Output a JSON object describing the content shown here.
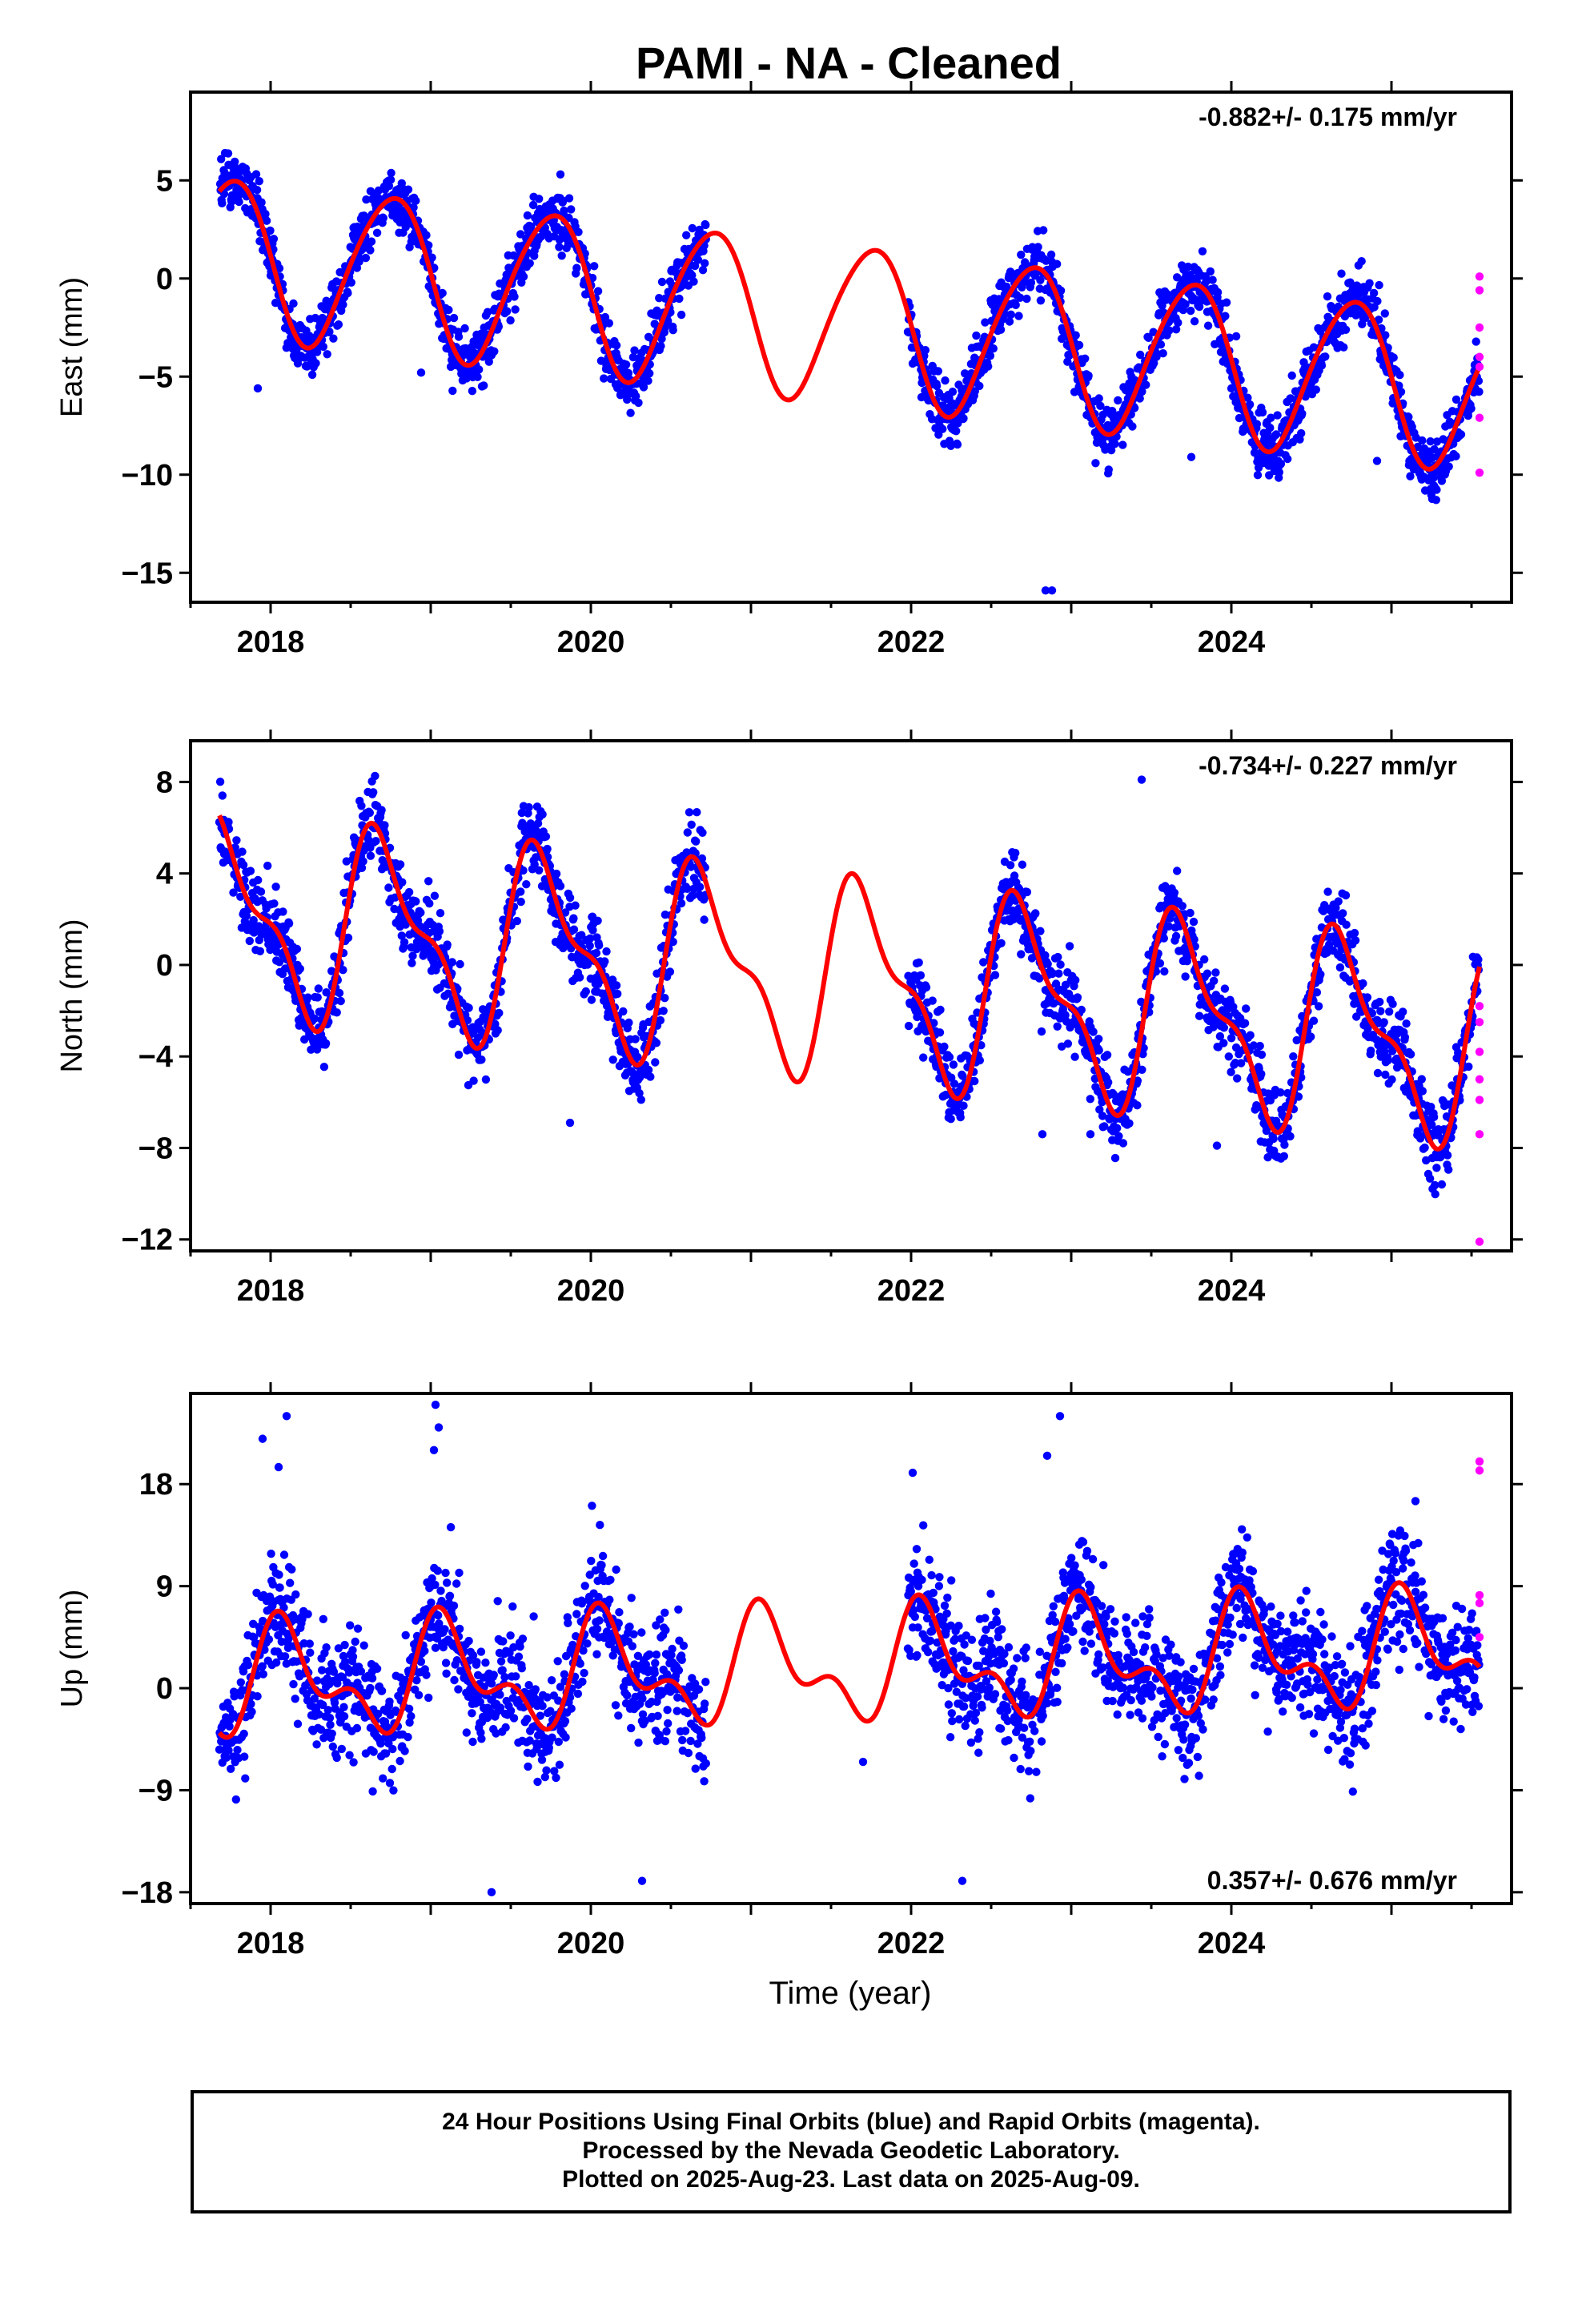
{
  "figure": {
    "title": "PAMI  - NA - Cleaned",
    "xlabel": "Time (year)"
  },
  "footer": {
    "line1": "24 Hour Positions Using Final Orbits (blue) and Rapid Orbits (magenta).",
    "line2": "Processed by the Nevada Geodetic Laboratory.",
    "line3": "Plotted on 2025-Aug-23. Last data on 2025-Aug-09."
  },
  "colors": {
    "final_points": "#0000ff",
    "rapid_points": "#ff00ff",
    "model_curve": "#ff0000",
    "frame": "#000000"
  },
  "chart_data": [
    {
      "type": "scatter",
      "component": "east",
      "ylabel": "East (mm)",
      "rate_label": "-0.882+/- 0.175 mm/yr",
      "rate_position": "top-right",
      "xlim": [
        2017.5,
        2025.75
      ],
      "ylim": [
        -16.5,
        9.5
      ],
      "xticks": [
        2018,
        2020,
        2022,
        2024
      ],
      "xtick_labels": [
        "2018",
        "2020",
        "2022",
        "2024"
      ],
      "yticks": [
        -15,
        -10,
        -5,
        0,
        5
      ],
      "ytick_labels": [
        "−15",
        "−10",
        "−5",
        "0",
        "5"
      ],
      "model": {
        "offset": 1.2,
        "trend": -0.882,
        "trend_ref": 2017.7,
        "amp1": 4.0,
        "phase1": 0.5,
        "amp2": 0.4,
        "phase2": 0.3
      },
      "final_segments": [
        [
          2017.68,
          2020.72
        ],
        [
          2021.98,
          2025.55
        ]
      ],
      "scatter_sd": 1.1,
      "outliers": [
        [
          2017.92,
          -5.6
        ],
        [
          2018.94,
          -4.8
        ],
        [
          2022.84,
          -15.9
        ],
        [
          2022.88,
          -15.9
        ],
        [
          2023.75,
          -9.1
        ],
        [
          2024.91,
          -9.3
        ]
      ],
      "rapid_points": [
        [
          2025.55,
          0.1
        ],
        [
          2025.55,
          -0.6
        ],
        [
          2025.55,
          -2.5
        ],
        [
          2025.55,
          -4.0
        ],
        [
          2025.55,
          -4.5
        ],
        [
          2025.55,
          -7.1
        ],
        [
          2025.55,
          -9.9
        ]
      ],
      "grid": false
    },
    {
      "type": "scatter",
      "component": "north",
      "ylabel": "North (mm)",
      "rate_label": "-0.734+/- 0.227 mm/yr",
      "rate_position": "top-right",
      "xlim": [
        2017.5,
        2025.75
      ],
      "ylim": [
        -12.5,
        9.8
      ],
      "xticks": [
        2018,
        2020,
        2022,
        2024
      ],
      "xtick_labels": [
        "2018",
        "2020",
        "2022",
        "2024"
      ],
      "yticks": [
        -12,
        -8,
        -4,
        0,
        4,
        8
      ],
      "ytick_labels": [
        "−12",
        "−8",
        "−4",
        "0",
        "4",
        "8"
      ],
      "model": {
        "offset": 2.2,
        "trend": -0.734,
        "trend_ref": 2017.7,
        "amp1": 3.8,
        "phase1": 0.46,
        "amp2": 1.6,
        "phase2": 0.46
      },
      "final_segments": [
        [
          2017.68,
          2020.72
        ],
        [
          2021.98,
          2025.55
        ]
      ],
      "scatter_sd": 1.2,
      "outliers": [
        [
          2019.87,
          -6.9
        ],
        [
          2022.82,
          -7.4
        ],
        [
          2023.12,
          -7.4
        ],
        [
          2023.91,
          -7.9
        ],
        [
          2025.27,
          -8.4
        ],
        [
          2023.44,
          8.1
        ]
      ],
      "rapid_points": [
        [
          2025.55,
          -1.8
        ],
        [
          2025.55,
          -2.5
        ],
        [
          2025.55,
          -3.8
        ],
        [
          2025.55,
          -5.0
        ],
        [
          2025.55,
          -5.9
        ],
        [
          2025.55,
          -7.4
        ],
        [
          2025.55,
          -12.1
        ]
      ],
      "grid": false
    },
    {
      "type": "scatter",
      "component": "up",
      "ylabel": "Up (mm)",
      "rate_label": "0.357+/- 0.676 mm/yr",
      "rate_position": "bottom-right",
      "xlim": [
        2017.5,
        2025.75
      ],
      "ylim": [
        -19,
        26
      ],
      "xticks": [
        2018,
        2020,
        2022,
        2024
      ],
      "xtick_labels": [
        "2018",
        "2020",
        "2022",
        "2024"
      ],
      "yticks": [
        -18,
        -9,
        0,
        9,
        18
      ],
      "ytick_labels": [
        "−18",
        "−9",
        "0",
        "9",
        "18"
      ],
      "model": {
        "offset": 0.5,
        "trend": 0.357,
        "trend_ref": 2017.7,
        "amp1": 4.0,
        "phase1": 0.85,
        "amp2": 2.5,
        "phase2": 0.4
      },
      "final_segments": [
        [
          2017.68,
          2020.72
        ],
        [
          2021.98,
          2025.55
        ]
      ],
      "scatter_sd": 3.6,
      "outliers": [
        [
          2017.95,
          22
        ],
        [
          2018.1,
          24
        ],
        [
          2018.05,
          19.5
        ],
        [
          2019.03,
          25
        ],
        [
          2019.05,
          23
        ],
        [
          2019.02,
          21
        ],
        [
          2022.85,
          20.5
        ],
        [
          2022.93,
          24
        ],
        [
          2022.01,
          19
        ],
        [
          2021.7,
          -6.5
        ],
        [
          2019.38,
          -18
        ],
        [
          2020.32,
          -17
        ],
        [
          2022.32,
          -17
        ],
        [
          2025.15,
          16.5
        ]
      ],
      "rapid_points": [
        [
          2025.55,
          20.0
        ],
        [
          2025.55,
          19.2
        ],
        [
          2025.55,
          8.2
        ],
        [
          2025.55,
          7.5
        ],
        [
          2025.55,
          4.5
        ]
      ],
      "grid": false
    }
  ]
}
